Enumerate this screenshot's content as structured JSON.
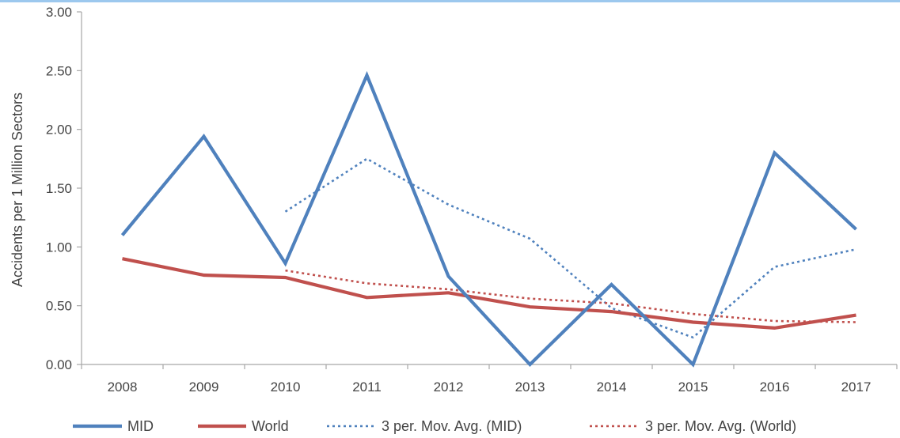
{
  "chart_data": {
    "type": "line",
    "x": [
      "2008",
      "2009",
      "2010",
      "2011",
      "2012",
      "2013",
      "2014",
      "2015",
      "2016",
      "2017"
    ],
    "ylabel": "Accidents per 1 Million Sectors",
    "xlabel": "",
    "ylim": [
      0,
      3
    ],
    "yticks": [
      "0.00",
      "0.50",
      "1.00",
      "1.50",
      "2.00",
      "2.50",
      "3.00"
    ],
    "grid": false,
    "legend_position": "bottom",
    "series": [
      {
        "name": "MID",
        "style": "solid",
        "color": "#4f81bd",
        "values": [
          1.1,
          1.94,
          0.86,
          2.46,
          0.75,
          0.0,
          0.68,
          0.0,
          1.8,
          1.15
        ]
      },
      {
        "name": "World",
        "style": "solid",
        "color": "#c0504d",
        "values": [
          0.9,
          0.76,
          0.74,
          0.57,
          0.61,
          0.49,
          0.45,
          0.36,
          0.31,
          0.42
        ]
      },
      {
        "name": "3 per. Mov. Avg. (MID)",
        "style": "dotted",
        "color": "#4f81bd",
        "values": [
          null,
          null,
          1.3,
          1.75,
          1.36,
          1.07,
          0.48,
          0.23,
          0.83,
          0.98
        ]
      },
      {
        "name": "3 per. Mov. Avg. (World)",
        "style": "dotted",
        "color": "#c0504d",
        "values": [
          null,
          null,
          0.8,
          0.69,
          0.64,
          0.56,
          0.52,
          0.43,
          0.37,
          0.36
        ]
      }
    ]
  }
}
